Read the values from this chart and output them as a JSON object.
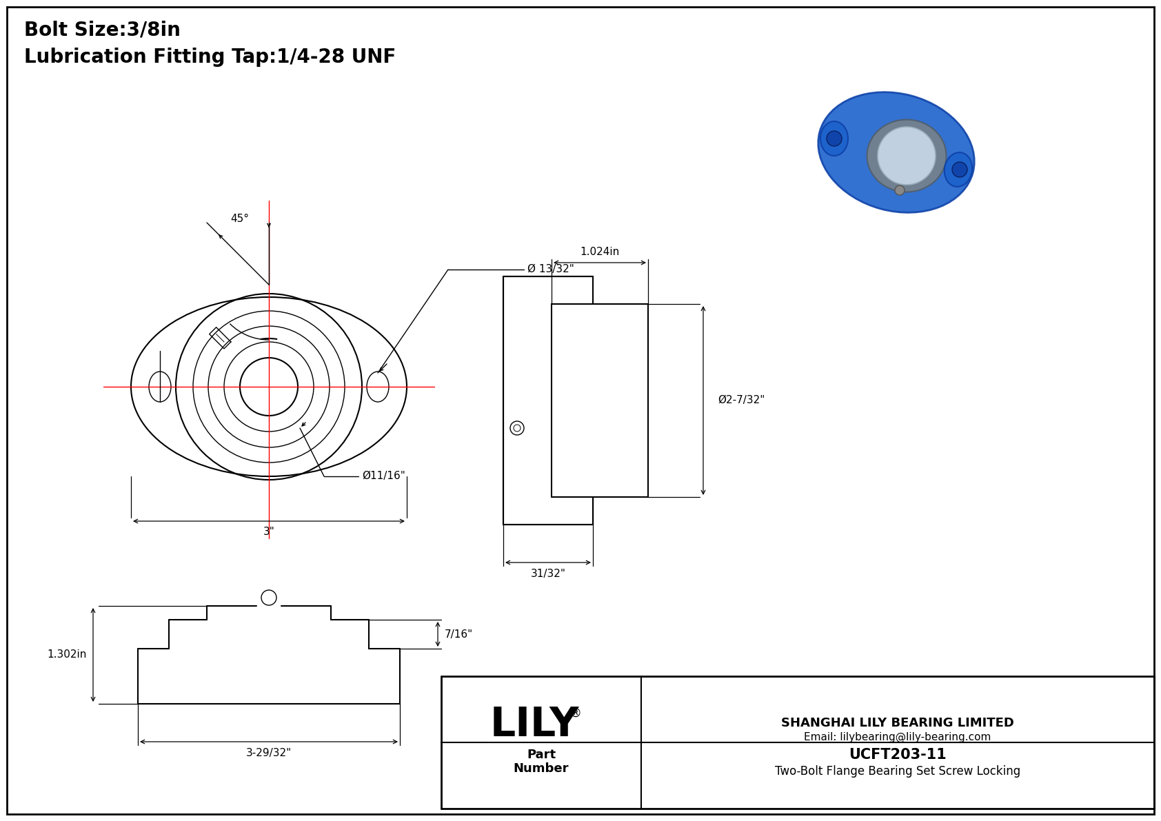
{
  "bg_color": "#ffffff",
  "border_color": "#000000",
  "line_color": "#000000",
  "red_line_color": "#ff0000",
  "title_text1": "Bolt Size:3/8in",
  "title_text2": "Lubrication Fitting Tap:1/4-28 UNF",
  "company_name": "SHANGHAI LILY BEARING LIMITED",
  "company_email": "Email: lilybearing@lily-bearing.com",
  "part_number": "UCFT203-11",
  "part_desc": "Two-Bolt Flange Bearing Set Screw Locking",
  "lily_text": "LILY",
  "part_label": "Part\nNumber",
  "dim_3in": "3\"",
  "dim_11_16": "Ø11/16\"",
  "dim_13_32": "Ø 13/32\"",
  "dim_45deg": "45°",
  "dim_1024": "1.024in",
  "dim_2_7_32": "Ø2-7/32\"",
  "dim_31_32": "31/32\"",
  "dim_1302": "1.302in",
  "dim_7_16": "7/16\"",
  "dim_3_29_32": "3-29/32\""
}
